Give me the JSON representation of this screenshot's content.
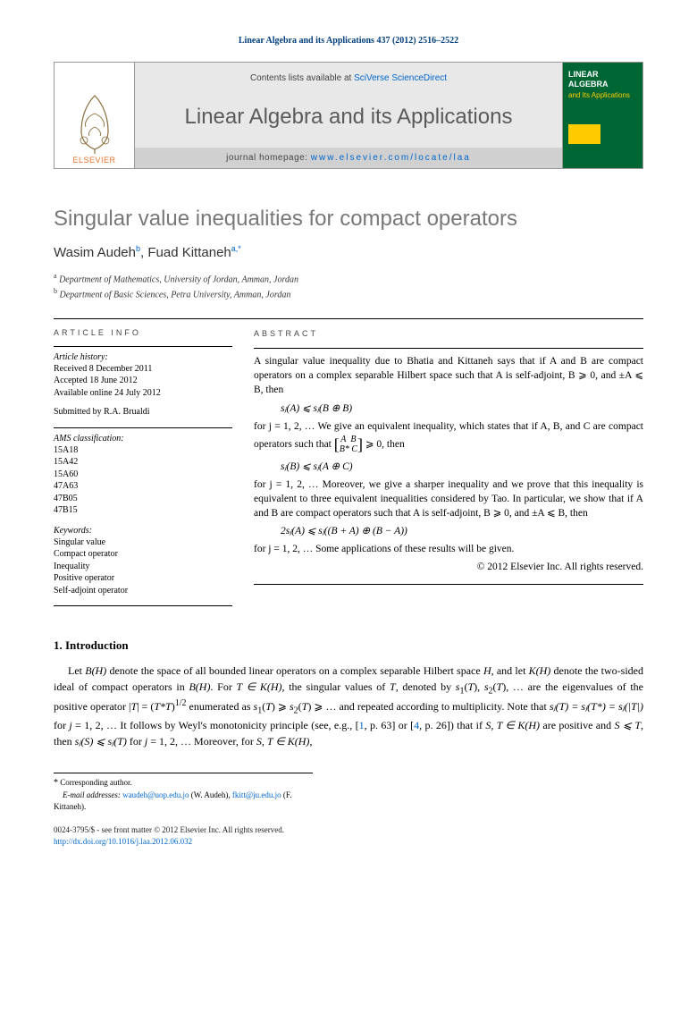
{
  "citation": "Linear Algebra and its Applications 437 (2012) 2516–2522",
  "banner": {
    "publisher": "ELSEVIER",
    "contents_prefix": "Contents lists available at ",
    "contents_link": "SciVerse ScienceDirect",
    "journal_name": "Linear Algebra and its Applications",
    "homepage_prefix": "journal homepage: ",
    "homepage_url": "www.elsevier.com/locate/laa",
    "cover_title": "LINEAR ALGEBRA",
    "cover_sub": "and Its Applications"
  },
  "title": "Singular value inequalities for compact operators",
  "authors": [
    {
      "name": "Wasim Audeh",
      "sup": "b"
    },
    {
      "name": "Fuad Kittaneh",
      "sup": "a,",
      "corresponding": true
    }
  ],
  "affiliations": [
    {
      "sup": "a",
      "text": "Department of Mathematics, University of Jordan, Amman, Jordan"
    },
    {
      "sup": "b",
      "text": "Department of Basic Sciences, Petra University, Amman, Jordan"
    }
  ],
  "info": {
    "label": "ARTICLE INFO",
    "history_label": "Article history:",
    "history": [
      "Received 8 December 2011",
      "Accepted 18 June 2012",
      "Available online 24 July 2012"
    ],
    "submitted": "Submitted by R.A. Brualdi",
    "ams_label": "AMS classification:",
    "ams": [
      "15A18",
      "15A42",
      "15A60",
      "47A63",
      "47B05",
      "47B15"
    ],
    "keywords_label": "Keywords:",
    "keywords": [
      "Singular value",
      "Compact operator",
      "Inequality",
      "Positive operator",
      "Self-adjoint operator"
    ]
  },
  "abstract": {
    "label": "ABSTRACT",
    "p1": "A singular value inequality due to Bhatia and Kittaneh says that if A and B are compact operators on a complex separable Hilbert space such that A is self-adjoint, B ⩾ 0, and ±A ⩽ B, then",
    "eq1": "sⱼ(A) ⩽ sⱼ(B ⊕ B)",
    "p2": "for j = 1, 2, … We give an equivalent inequality, which states that if A, B, and C are compact operators such that ",
    "matrix": "[ A  B ; B*  C ] ⩾ 0,",
    "p2b": " then",
    "eq2": "sⱼ(B) ⩽ sⱼ(A ⊕ C)",
    "p3": "for j = 1, 2, … Moreover, we give a sharper inequality and we prove that this inequality is equivalent to three equivalent inequalities considered by Tao. In particular, we show that if A and B are compact operators such that A is self-adjoint, B ⩾ 0, and ±A ⩽ B, then",
    "eq3": "2sⱼ(A) ⩽ sⱼ((B + A) ⊕ (B − A))",
    "p4": "for j = 1, 2, … Some applications of these results will be given.",
    "copyright": "© 2012 Elsevier Inc. All rights reserved."
  },
  "intro": {
    "heading": "1. Introduction",
    "body_html": "Let <span class='math'>B(H)</span> denote the space of all bounded linear operators on a complex separable Hilbert space <span class='math'>H</span>, and let <span class='math'>K(H)</span> denote the two-sided ideal of compact operators in <span class='math'>B(H)</span>. For <span class='math'>T ∈ K(H)</span>, the singular values of <span class='math'>T</span>, denoted by <span class='math'>s</span><sub>1</sub>(<span class='math'>T</span>), <span class='math'>s</span><sub>2</sub>(<span class='math'>T</span>), … are the eigenvalues of the positive operator |<span class='math'>T</span>| = (<span class='math'>T*T</span>)<sup>1/2</sup> enumerated as <span class='math'>s</span><sub>1</sub>(<span class='math'>T</span>) ⩾ <span class='math'>s</span><sub>2</sub>(<span class='math'>T</span>) ⩾ … and repeated according to multiplicity. Note that <span class='math'>sⱼ(T) = sⱼ(T*) = sⱼ(|T|)</span> for <span class='math'>j</span> = 1, 2, … It follows by Weyl's monotonicity principle (see, e.g., [<span class='ref-link'>1</span>, p. 63] or [<span class='ref-link'>4</span>, p. 26]) that if <span class='math'>S, T ∈ K(H)</span> are positive and <span class='math'>S ⩽ T</span>, then <span class='math'>sⱼ(S) ⩽ sⱼ(T)</span> for <span class='math'>j</span> = 1, 2, … Moreover, for <span class='math'>S, T ∈ K(H)</span>,"
  },
  "footnotes": {
    "corr": "Corresponding author.",
    "email_label": "E-mail addresses:",
    "emails": [
      {
        "addr": "waudeh@uop.edu.jo",
        "who": "(W. Audeh)"
      },
      {
        "addr": "fkitt@ju.edu.jo",
        "who": "(F. Kittaneh)"
      }
    ]
  },
  "bottom": {
    "issn": "0024-3795/$ - see front matter © 2012 Elsevier Inc. All rights reserved.",
    "doi_url": "http://dx.doi.org/10.1016/j.laa.2012.06.032"
  }
}
